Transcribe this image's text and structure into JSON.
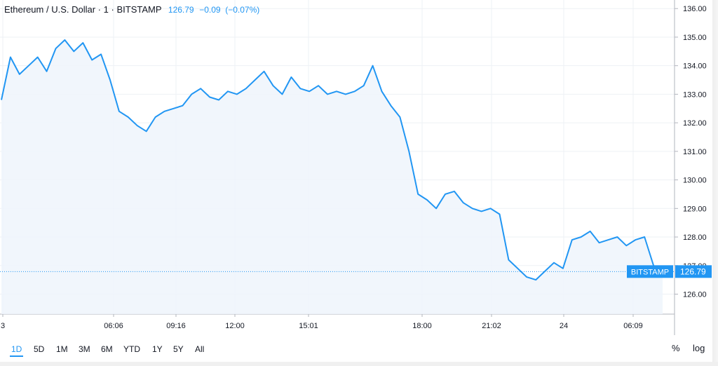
{
  "header": {
    "symbol": "Ethereum / U.S. Dollar",
    "dot1": "·",
    "interval": "1",
    "dot2": "·",
    "exchange": "BITSTAMP",
    "last": "126.79",
    "change": "−0.09",
    "change_pct": "(−0.07%)"
  },
  "price_tag": {
    "label": "BITSTAMP",
    "value": "126.79"
  },
  "colors": {
    "line": "#2196f3",
    "area": "#eef5fc",
    "grid": "#eef1f5",
    "axis": "#b2b5be",
    "tag": "#2196f3"
  },
  "ranges": [
    {
      "label": "1D",
      "active": true
    },
    {
      "label": "5D",
      "active": false
    },
    {
      "label": "1M",
      "active": false
    },
    {
      "label": "3M",
      "active": false
    },
    {
      "label": "6M",
      "active": false
    },
    {
      "label": "YTD",
      "active": false
    },
    {
      "label": "1Y",
      "active": false
    },
    {
      "label": "5Y",
      "active": false
    },
    {
      "label": "All",
      "active": false
    }
  ],
  "options": {
    "percent": "%",
    "log": "log"
  },
  "chart_data": {
    "type": "line",
    "series": [
      {
        "x": [
          "03:00",
          "03:15",
          "03:30",
          "03:45",
          "04:00",
          "04:15",
          "04:30",
          "04:45",
          "05:00",
          "05:15",
          "05:30",
          "05:45",
          "06:00",
          "06:15",
          "06:30",
          "06:45",
          "07:00",
          "07:15",
          "07:30",
          "07:45",
          "08:00",
          "08:15",
          "08:30",
          "08:45",
          "09:00",
          "09:15",
          "09:30",
          "09:45",
          "10:00",
          "10:15",
          "10:30",
          "10:45",
          "11:00",
          "11:15",
          "11:30",
          "11:45",
          "12:00",
          "12:15",
          "12:30",
          "12:45",
          "13:00",
          "13:15",
          "13:30",
          "13:45",
          "14:00",
          "14:15",
          "14:30",
          "14:45",
          "15:00",
          "15:15",
          "15:30",
          "15:45",
          "16:00",
          "16:15",
          "16:30",
          "16:45",
          "17:00",
          "17:15",
          "17:30",
          "17:45",
          "18:00",
          "18:15",
          "18:30",
          "18:45",
          "19:00",
          "19:15",
          "19:30",
          "19:45",
          "20:00",
          "20:15",
          "20:30",
          "20:45",
          "21:00",
          "21:15",
          "21:30",
          "21:45",
          "22:00",
          "22:15",
          "22:30",
          "22:45",
          "23:00",
          "23:15",
          "23:30",
          "23:45",
          "24 00:00",
          "24 00:15",
          "24 00:30",
          "24 00:45",
          "24 01:00",
          "24 01:15",
          "24 01:30",
          "24 01:45",
          "24 02:00",
          "24 02:15",
          "24 02:30",
          "24 02:45",
          "24 03:00"
        ],
        "values": [
          132.8,
          134.3,
          133.7,
          134.0,
          134.3,
          133.8,
          134.6,
          134.9,
          134.5,
          134.8,
          134.2,
          134.4,
          133.5,
          132.4,
          132.2,
          131.9,
          131.7,
          132.2,
          132.4,
          132.5,
          132.6,
          133.0,
          133.2,
          132.9,
          132.8,
          133.1,
          133.0,
          133.2,
          133.5,
          133.8,
          133.3,
          133.0,
          133.6,
          133.2,
          133.1,
          133.3,
          133.0,
          133.1,
          133.0,
          133.1,
          133.3,
          134.0,
          133.1,
          132.6,
          132.2,
          131.0,
          129.5,
          129.3,
          129.0,
          129.5,
          129.6,
          129.2,
          129.0,
          128.9,
          129.0,
          128.8,
          127.2,
          126.9,
          126.6,
          126.5,
          126.8,
          127.1,
          126.9,
          127.9,
          128.0,
          128.2,
          127.8,
          127.9,
          128.0,
          127.7,
          127.9,
          128.0,
          127.0,
          126.79,
          126.79,
          126.79,
          126.79,
          126.79,
          126.79,
          126.79,
          126.79,
          126.79,
          126.79,
          126.79,
          126.79,
          126.79,
          126.79,
          126.79,
          126.79,
          126.79,
          126.79,
          126.79,
          126.79,
          126.79,
          126.79,
          126.79,
          126.79
        ],
        "note_ignore": ""
      }
    ],
    "x_ticks": [
      "3",
      "06:06",
      "09:16",
      "12:00",
      "15:01",
      "18:00",
      "21:02",
      "24",
      "06:09"
    ],
    "y_ticks": [
      "126.00",
      "127.00",
      "128.00",
      "129.00",
      "130.00",
      "131.00",
      "132.00",
      "133.00",
      "134.00",
      "135.00",
      "136.00"
    ],
    "ylim": [
      125.3,
      136.3
    ],
    "grid": true,
    "legend": "none"
  }
}
